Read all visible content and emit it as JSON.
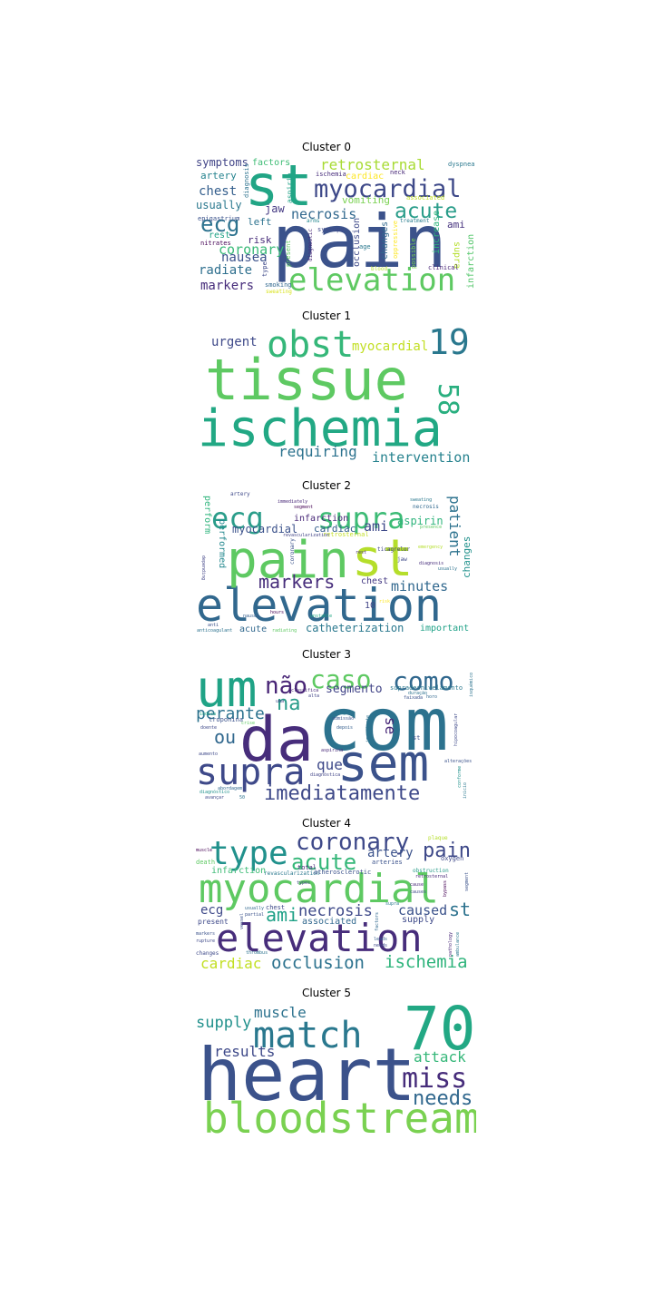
{
  "clusters": [
    {
      "title": "Cluster 0",
      "words": [
        {
          "text": "pain",
          "color": "#3b528b"
        },
        {
          "text": "st",
          "color": "#21a585"
        },
        {
          "text": "elevation",
          "color": "#5ec962"
        },
        {
          "text": "myocardial",
          "color": "#3e4989"
        },
        {
          "text": "acute",
          "color": "#2a9d8a"
        },
        {
          "text": "ecg",
          "color": "#2c728e"
        },
        {
          "text": "retrosternal",
          "color": "#a8db34"
        },
        {
          "text": "coronary",
          "color": "#38b977"
        },
        {
          "text": "necrosis",
          "color": "#31688e"
        },
        {
          "text": "symptoms",
          "color": "#414487"
        },
        {
          "text": "chest",
          "color": "#355f8d"
        },
        {
          "text": "radiate",
          "color": "#2e6f8e"
        },
        {
          "text": "markers",
          "color": "#472d7b"
        },
        {
          "text": "nausea",
          "color": "#3b528b"
        },
        {
          "text": "usually",
          "color": "#2a788e"
        },
        {
          "text": "factors",
          "color": "#3dbc74"
        },
        {
          "text": "artery",
          "color": "#25838e"
        },
        {
          "text": "vomiting",
          "color": "#7ad151"
        },
        {
          "text": "jaw",
          "color": "#443983"
        },
        {
          "text": "left",
          "color": "#2c728e"
        },
        {
          "text": "risk",
          "color": "#472c7a"
        },
        {
          "text": "rest",
          "color": "#20a386"
        },
        {
          "text": "ami",
          "color": "#46327e"
        },
        {
          "text": "cardiac",
          "color": "#fde725"
        },
        {
          "text": "occlusion",
          "color": "#3e4989"
        },
        {
          "text": "changes",
          "color": "#31688e"
        },
        {
          "text": "increase",
          "color": "#2fb47c"
        },
        {
          "text": "supra",
          "color": "#b5de2b"
        },
        {
          "text": "infarction",
          "color": "#52c569"
        },
        {
          "text": "aspirin",
          "color": "#1fa187"
        },
        {
          "text": "diagnosis",
          "color": "#2c728e"
        },
        {
          "text": "dyspnea",
          "color": "#2a788e"
        },
        {
          "text": "ischemia",
          "color": "#472d7b"
        },
        {
          "text": "epigastrium",
          "color": "#3b528b"
        },
        {
          "text": "nitrates",
          "color": "#440154"
        },
        {
          "text": "type",
          "color": "#3e4989"
        },
        {
          "text": "smoking",
          "color": "#31688e"
        },
        {
          "text": "sweating",
          "color": "#d8e219"
        },
        {
          "text": "present",
          "color": "#5ec962"
        },
        {
          "text": "syncope",
          "color": "#3e4989"
        },
        {
          "text": "arms",
          "color": "#23888e"
        },
        {
          "text": "neck",
          "color": "#482878"
        },
        {
          "text": "associated",
          "color": "#c2df23"
        },
        {
          "text": "oppressive",
          "color": "#fde725"
        },
        {
          "text": "possible",
          "color": "#7ad151"
        },
        {
          "text": "treatment",
          "color": "#287d8e"
        },
        {
          "text": "clinical",
          "color": "#482576"
        },
        {
          "text": "age",
          "color": "#2a788e"
        },
        {
          "text": "blood",
          "color": "#b5de2b"
        },
        {
          "text": "diagnostic",
          "color": "#482878"
        }
      ]
    },
    {
      "title": "Cluster 1",
      "words": [
        {
          "text": "tissue",
          "color": "#5ec962"
        },
        {
          "text": "ischemia",
          "color": "#22a884"
        },
        {
          "text": "obst",
          "color": "#35b779"
        },
        {
          "text": "19",
          "color": "#2a788e"
        },
        {
          "text": "58",
          "color": "#29af7f"
        },
        {
          "text": "myocardial",
          "color": "#c2df23"
        },
        {
          "text": "urgent",
          "color": "#3e4989"
        },
        {
          "text": "requiring",
          "color": "#2c728e"
        },
        {
          "text": "intervention",
          "color": "#26828e"
        }
      ]
    },
    {
      "title": "Cluster 2",
      "words": [
        {
          "text": "elevation",
          "color": "#31688e"
        },
        {
          "text": "pain",
          "color": "#5ec962"
        },
        {
          "text": "st",
          "color": "#b5de2b"
        },
        {
          "text": "ecg",
          "color": "#2a9d8a"
        },
        {
          "text": "supra",
          "color": "#3cbb75"
        },
        {
          "text": "markers",
          "color": "#472d7b"
        },
        {
          "text": "patient",
          "color": "#2c728e"
        },
        {
          "text": "minutes",
          "color": "#31688e"
        },
        {
          "text": "ami",
          "color": "#3e4989"
        },
        {
          "text": "aspirin",
          "color": "#2fb47c"
        },
        {
          "text": "changes",
          "color": "#21918c"
        },
        {
          "text": "myocardial",
          "color": "#3b528b"
        },
        {
          "text": "cardiac",
          "color": "#355f8d"
        },
        {
          "text": "infarction",
          "color": "#482878"
        },
        {
          "text": "chest",
          "color": "#443983"
        },
        {
          "text": "perform",
          "color": "#2fb47c"
        },
        {
          "text": "performed",
          "color": "#23888e"
        },
        {
          "text": "catheterization",
          "color": "#2a788e"
        },
        {
          "text": "important",
          "color": "#1fa187"
        },
        {
          "text": "acute",
          "color": "#31688e"
        },
        {
          "text": "10",
          "color": "#414487"
        },
        {
          "text": "artery",
          "color": "#3e4989"
        },
        {
          "text": "retrosternal",
          "color": "#c2df23"
        },
        {
          "text": "revascularization",
          "color": "#414487"
        },
        {
          "text": "coronary",
          "color": "#3b528b"
        },
        {
          "text": "immediately",
          "color": "#482878"
        },
        {
          "text": "segment",
          "color": "#440154"
        },
        {
          "text": "necrosis",
          "color": "#31688e"
        },
        {
          "text": "sweating",
          "color": "#2a788e"
        },
        {
          "text": "ticagrelor",
          "color": "#414487"
        },
        {
          "text": "jaw",
          "color": "#3e4989"
        },
        {
          "text": "diagnosis",
          "color": "#472d7b"
        },
        {
          "text": "emergency",
          "color": "#b5de2b"
        },
        {
          "text": "usually",
          "color": "#2c728e"
        },
        {
          "text": "presence",
          "color": "#5ec962"
        },
        {
          "text": "unstable",
          "color": "#22a884"
        },
        {
          "text": "hours",
          "color": "#440154"
        },
        {
          "text": "nausea",
          "color": "#355f8d"
        },
        {
          "text": "radiating",
          "color": "#5ec962"
        },
        {
          "text": "anti",
          "color": "#3b528b"
        },
        {
          "text": "anticoagulant",
          "color": "#2c728e"
        },
        {
          "text": "depending",
          "color": "#414487"
        },
        {
          "text": "rest",
          "color": "#472d7b"
        },
        {
          "text": "risk",
          "color": "#fde725"
        }
      ]
    },
    {
      "title": "Cluster 3",
      "words": [
        {
          "text": "com",
          "color": "#2c728e"
        },
        {
          "text": "da",
          "color": "#472d7b"
        },
        {
          "text": "um",
          "color": "#20a386"
        },
        {
          "text": "sem",
          "color": "#3b528b"
        },
        {
          "text": "supra",
          "color": "#3e4989"
        },
        {
          "text": "imediatamente",
          "color": "#3e4989"
        },
        {
          "text": "não",
          "color": "#482576"
        },
        {
          "text": "caso",
          "color": "#5ec962"
        },
        {
          "text": "como",
          "color": "#31688e"
        },
        {
          "text": "na",
          "color": "#2a9d8a"
        },
        {
          "text": "perante",
          "color": "#2c728e"
        },
        {
          "text": "ou",
          "color": "#31688e"
        },
        {
          "text": "que",
          "color": "#3e4989"
        },
        {
          "text": "segmento",
          "color": "#414487"
        },
        {
          "text": "se",
          "color": "#482878"
        },
        {
          "text": "supradesnivelamento",
          "color": "#2a788e"
        },
        {
          "text": "troponina",
          "color": "#3b528b"
        },
        {
          "text": "diagnóstica",
          "color": "#414487"
        },
        {
          "text": "abordagem",
          "color": "#31688e"
        },
        {
          "text": "avançar",
          "color": "#3e4989"
        },
        {
          "text": "50",
          "color": "#2c728e"
        },
        {
          "text": "st",
          "color": "#3b528b"
        },
        {
          "text": "alterações",
          "color": "#3b528b"
        },
        {
          "text": "ecg",
          "color": "#2a788e"
        },
        {
          "text": "depois",
          "color": "#355f8d"
        },
        {
          "text": "aspirina",
          "color": "#482878"
        },
        {
          "text": "importante",
          "color": "#2c728e"
        },
        {
          "text": "hipocoagular",
          "color": "#3e4989"
        },
        {
          "text": "indica",
          "color": "#22a884"
        },
        {
          "text": "doente",
          "color": "#3e4989"
        },
        {
          "text": "aumento",
          "color": "#3e4989"
        },
        {
          "text": "alta",
          "color": "#414487"
        },
        {
          "text": "faixada",
          "color": "#3b528b"
        },
        {
          "text": "duração",
          "color": "#2c728e"
        },
        {
          "text": "horo",
          "color": "#31688e"
        },
        {
          "text": "classifica",
          "color": "#482878"
        },
        {
          "text": "uma",
          "color": "#3e4989"
        },
        {
          "text": "admissão",
          "color": "#3b528b"
        },
        {
          "text": "crise",
          "color": "#5ec962"
        },
        {
          "text": "inicio",
          "color": "#2a788e"
        },
        {
          "text": "conforme",
          "color": "#21918c"
        },
        {
          "text": "isquémico",
          "color": "#2c728e"
        },
        {
          "text": "diagnóstico",
          "color": "#21918c"
        }
      ]
    },
    {
      "title": "Cluster 4",
      "words": [
        {
          "text": "myocardial",
          "color": "#5ec962"
        },
        {
          "text": "elevation",
          "color": "#472d7b"
        },
        {
          "text": "type",
          "color": "#21918c"
        },
        {
          "text": "coronary",
          "color": "#3e4989"
        },
        {
          "text": "acute",
          "color": "#35b779"
        },
        {
          "text": "pain",
          "color": "#3e4989"
        },
        {
          "text": "artery",
          "color": "#3b528b"
        },
        {
          "text": "occlusion",
          "color": "#2c728e"
        },
        {
          "text": "ischemia",
          "color": "#2fb47c"
        },
        {
          "text": "necrosis",
          "color": "#3e4989"
        },
        {
          "text": "ami",
          "color": "#1fa187"
        },
        {
          "text": "caused",
          "color": "#3b528b"
        },
        {
          "text": "st",
          "color": "#2c728e"
        },
        {
          "text": "ecg",
          "color": "#3e4989"
        },
        {
          "text": "cardiac",
          "color": "#c2df23"
        },
        {
          "text": "associated",
          "color": "#31688e"
        },
        {
          "text": "supply",
          "color": "#3e4989"
        },
        {
          "text": "infarction",
          "color": "#3cbb75"
        },
        {
          "text": "revascularization",
          "color": "#2a788e"
        },
        {
          "text": "atherosclerotic",
          "color": "#3b528b"
        },
        {
          "text": "total",
          "color": "#482878"
        },
        {
          "text": "arteries",
          "color": "#3b528b"
        },
        {
          "text": "oxygen",
          "color": "#3e4989"
        },
        {
          "text": "plaque",
          "color": "#b5de2b"
        },
        {
          "text": "death",
          "color": "#5ec962"
        },
        {
          "text": "muscle",
          "color": "#440154"
        },
        {
          "text": "obstruction",
          "color": "#2a9d8a"
        },
        {
          "text": "retrosternal",
          "color": "#482878"
        },
        {
          "text": "present",
          "color": "#3e4989"
        },
        {
          "text": "chest",
          "color": "#3e4989"
        },
        {
          "text": "usually",
          "color": "#31688e"
        },
        {
          "text": "partial",
          "color": "#3b528b"
        },
        {
          "text": "markers",
          "color": "#3b528b"
        },
        {
          "text": "rupture",
          "color": "#3e4989"
        },
        {
          "text": "changes",
          "color": "#3e4989"
        },
        {
          "text": "thrombus",
          "color": "#2c728e"
        },
        {
          "text": "leads",
          "color": "#355f8d"
        },
        {
          "text": "needs",
          "color": "#3e4989"
        },
        {
          "text": "pathology",
          "color": "#482878"
        },
        {
          "text": "ambulance",
          "color": "#2a788e"
        },
        {
          "text": "bypass",
          "color": "#440154"
        },
        {
          "text": "segment",
          "color": "#3b528b"
        },
        {
          "text": "causes",
          "color": "#3e4989"
        },
        {
          "text": "supra",
          "color": "#2a788e"
        },
        {
          "text": "vessel",
          "color": "#3b528b"
        },
        {
          "text": "types",
          "color": "#414487"
        },
        {
          "text": "factors",
          "color": "#31688e"
        },
        {
          "text": "cause",
          "color": "#482878"
        }
      ]
    },
    {
      "title": "Cluster 5",
      "words": [
        {
          "text": "heart",
          "color": "#3b528b"
        },
        {
          "text": "bloodstream",
          "color": "#7ad151"
        },
        {
          "text": "70",
          "color": "#22a884"
        },
        {
          "text": "match",
          "color": "#2a788e"
        },
        {
          "text": "miss",
          "color": "#472d7b"
        },
        {
          "text": "needs",
          "color": "#31688e"
        },
        {
          "text": "attack",
          "color": "#35b779"
        },
        {
          "text": "supply",
          "color": "#21918c"
        },
        {
          "text": "muscle",
          "color": "#2c728e"
        },
        {
          "text": "results",
          "color": "#3e4989"
        }
      ]
    }
  ]
}
